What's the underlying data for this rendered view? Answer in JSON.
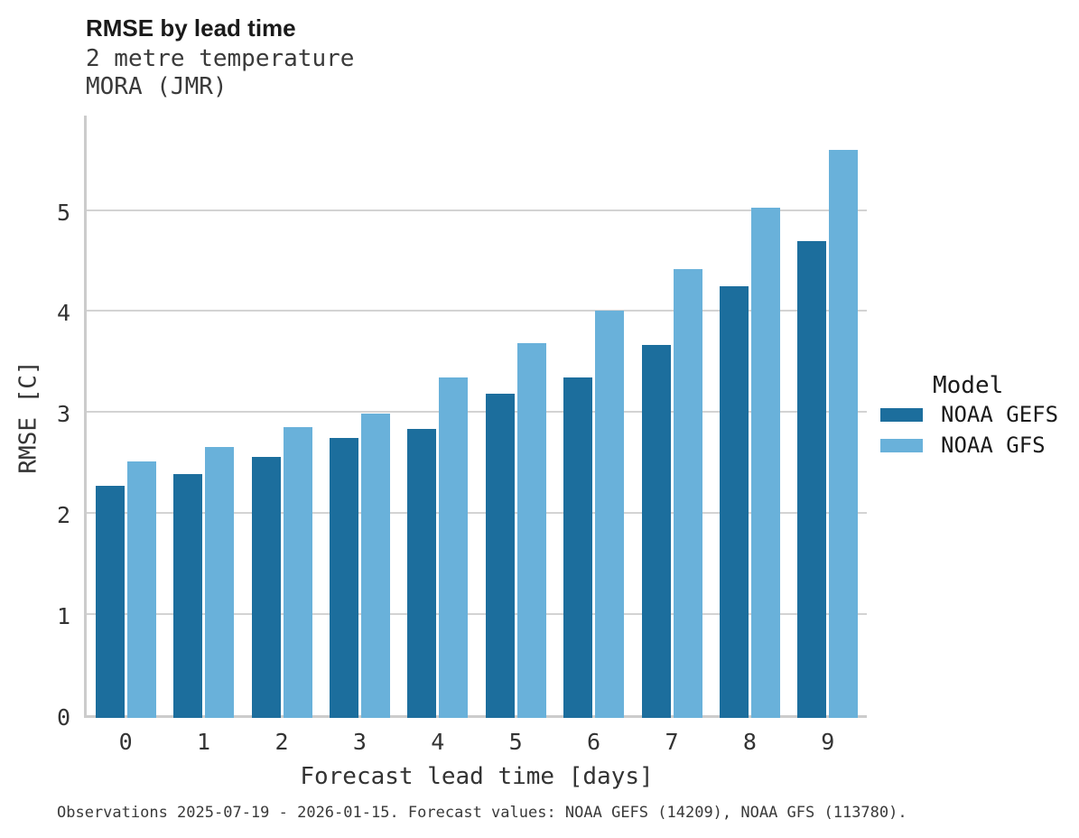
{
  "header": {
    "title": "RMSE by lead time",
    "subtitle_line1": "2 metre temperature",
    "subtitle_line2": "MORA (JMR)"
  },
  "chart_data": {
    "type": "bar",
    "title": "RMSE by lead time",
    "subtitle": [
      "2 metre temperature",
      "MORA (JMR)"
    ],
    "categories": [
      0,
      1,
      2,
      3,
      4,
      5,
      6,
      7,
      8,
      9
    ],
    "series": [
      {
        "name": "NOAA GEFS",
        "color": "#1c6e9d",
        "values": [
          2.3,
          2.41,
          2.58,
          2.77,
          2.86,
          3.21,
          3.37,
          3.69,
          4.27,
          4.72
        ]
      },
      {
        "name": "NOAA GFS",
        "color": "#69b1da",
        "values": [
          2.54,
          2.68,
          2.88,
          3.01,
          3.37,
          3.71,
          4.03,
          4.44,
          5.05,
          5.62
        ]
      }
    ],
    "xlabel": "Forecast lead time [days]",
    "ylabel": "RMSE [C]",
    "ylim": [
      0,
      5.95
    ],
    "yticks": [
      0,
      1,
      2,
      3,
      4,
      5
    ],
    "grid": true,
    "legend_title": "Model",
    "legend_position": "right"
  },
  "legend": {
    "title": "Model",
    "items": [
      {
        "label": "NOAA GEFS",
        "color": "#1c6e9d"
      },
      {
        "label": "NOAA GFS",
        "color": "#69b1da"
      }
    ]
  },
  "footer": {
    "note": "Observations 2025-07-19 - 2026-01-15. Forecast values: NOAA GEFS (14209), NOAA GFS (113780)."
  },
  "colors": {
    "gridline": "#d3d3d3",
    "spine": "#cccccc",
    "title_text": "#1a1a1a",
    "axis_text": "#333333",
    "muted_text": "#3a3a3a"
  }
}
